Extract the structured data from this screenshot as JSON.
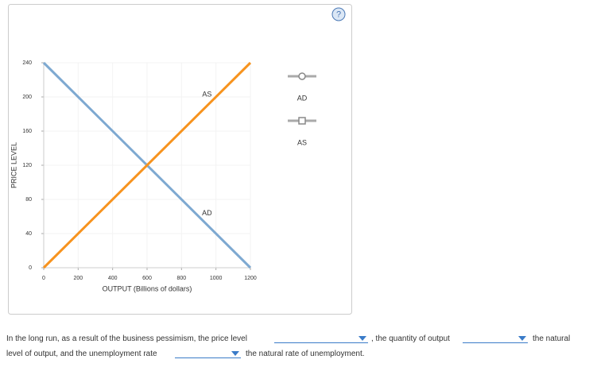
{
  "chart_data": {
    "type": "line",
    "x": [
      0,
      1200
    ],
    "series": [
      {
        "name": "AD",
        "color": "#7ea9d1",
        "values": [
          240,
          0
        ]
      },
      {
        "name": "AS",
        "color": "#f7931e",
        "values": [
          0,
          240
        ]
      }
    ],
    "xlim": [
      0,
      1200
    ],
    "xticks": [
      0,
      200,
      400,
      600,
      800,
      1000,
      1200
    ],
    "ylim": [
      0,
      240
    ],
    "yticks": [
      0,
      40,
      80,
      120,
      160,
      200,
      240
    ],
    "xlabel": "OUTPUT (Billions of dollars)",
    "ylabel": "PRICE LEVEL",
    "grid": true
  },
  "help": "?",
  "question": {
    "line1": "In the long run, as a result of the business pessimism, the price level",
    "part2": ", the quantity of output",
    "part3": "the natural",
    "line2": "level of output, and the unemployment rate",
    "part4": "the natural rate of unemployment."
  }
}
